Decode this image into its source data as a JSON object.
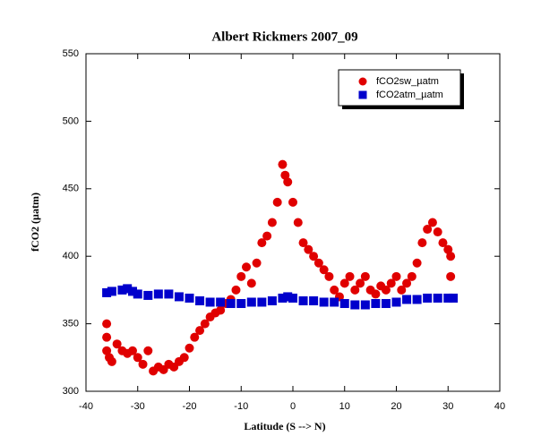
{
  "chart_data": {
    "type": "scatter",
    "title": "Albert Rickmers 2007_09",
    "x_label": "Latitude (S --> N)",
    "y_label": "fCO2 (µatm)",
    "xlim": [
      -40,
      40
    ],
    "xticks": [
      -40,
      -30,
      -20,
      -10,
      0,
      10,
      20,
      30,
      40
    ],
    "ylim": [
      300,
      550
    ],
    "yticks": [
      300,
      350,
      400,
      450,
      500,
      550
    ],
    "legend": "upper right",
    "series": [
      {
        "name": "fCO2sw_µatm",
        "color": "#e00000",
        "marker": "circle",
        "x": [
          -36,
          -36,
          -36,
          -35.5,
          -35,
          -34,
          -33,
          -32,
          -31,
          -30,
          -29,
          -28,
          -27,
          -26,
          -25,
          -24,
          -23,
          -22,
          -21,
          -20,
          -19,
          -18,
          -17,
          -16,
          -15,
          -14,
          -13,
          -12,
          -11,
          -10,
          -9,
          -8,
          -7,
          -6,
          -5,
          -4,
          -3,
          -2,
          -1.5,
          -1,
          0,
          1,
          2,
          3,
          4,
          5,
          6,
          7,
          8,
          9,
          10,
          11,
          12,
          13,
          14,
          15,
          16,
          17,
          18,
          19,
          20,
          21,
          22,
          23,
          24,
          25,
          26,
          27,
          28,
          29,
          30,
          30.5,
          30.5
        ],
        "values": [
          340,
          350,
          330,
          325,
          322,
          335,
          330,
          328,
          330,
          325,
          320,
          330,
          315,
          318,
          316,
          320,
          318,
          322,
          325,
          332,
          340,
          345,
          350,
          355,
          358,
          360,
          365,
          368,
          375,
          385,
          392,
          380,
          395,
          410,
          415,
          425,
          440,
          468,
          460,
          455,
          440,
          425,
          410,
          405,
          400,
          395,
          390,
          385,
          375,
          370,
          380,
          385,
          375,
          380,
          385,
          375,
          372,
          378,
          375,
          380,
          385,
          375,
          380,
          385,
          395,
          410,
          420,
          425,
          418,
          410,
          405,
          400,
          385
        ]
      },
      {
        "name": "fCO2atm_µatm",
        "color": "#0000cc",
        "marker": "square",
        "x": [
          -36,
          -35,
          -33,
          -32,
          -31,
          -30,
          -28,
          -26,
          -24,
          -22,
          -20,
          -18,
          -16,
          -14,
          -12,
          -10,
          -8,
          -6,
          -4,
          -2,
          -1,
          0,
          2,
          4,
          6,
          8,
          10,
          12,
          14,
          16,
          18,
          20,
          22,
          24,
          26,
          28,
          30,
          31
        ],
        "values": [
          373,
          374,
          375,
          376,
          374,
          372,
          371,
          372,
          372,
          370,
          369,
          367,
          366,
          366,
          365,
          365,
          366,
          366,
          367,
          369,
          370,
          369,
          367,
          367,
          366,
          366,
          365,
          364,
          364,
          365,
          365,
          366,
          368,
          368,
          369,
          369,
          369,
          369
        ]
      }
    ]
  }
}
